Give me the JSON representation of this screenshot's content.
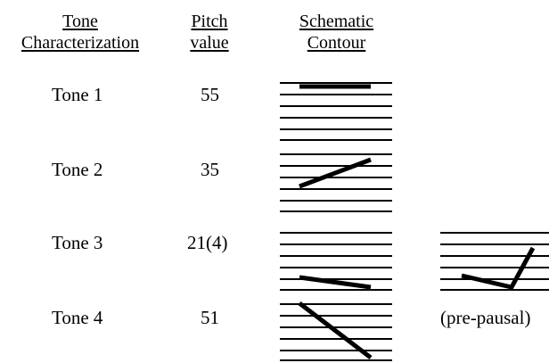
{
  "headers": {
    "tone_line1": "Tone",
    "tone_line2": "Characterization",
    "pitch_line1": "Pitch",
    "pitch_line2": "value",
    "contour_line1": "Schematic",
    "contour_line2": "Contour"
  },
  "tones": [
    {
      "name": "Tone 1",
      "pitch": "55"
    },
    {
      "name": "Tone 2",
      "pitch": "35"
    },
    {
      "name": "Tone 3",
      "pitch": "21(4)"
    },
    {
      "name": "Tone 4",
      "pitch": "51"
    }
  ],
  "extra_contour": {
    "label": "(pre-pausal)"
  }
}
